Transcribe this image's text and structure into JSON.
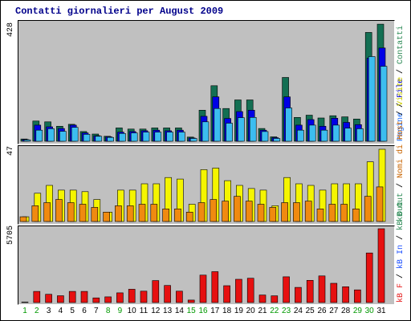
{
  "title": "Contatti giornalieri per August 2009",
  "colors": {
    "pages": "#3cbdf0",
    "files": "#0000e6",
    "visits": "#136f53",
    "hosts": "#f5f500",
    "kb_in": "#f08a10",
    "kb": "#e61010",
    "weekend": "#009900",
    "panel_bg": "#c0c0c0"
  },
  "legend_top": [
    {
      "label": "Pagine",
      "color": "#1e6fff"
    },
    {
      "label": "File",
      "color": "#0000cc"
    },
    {
      "label": "Contatti",
      "color": "#2e8b57"
    }
  ],
  "legend_mid": [
    {
      "label": "kB Out",
      "color": "#2e8b57"
    },
    {
      "label": "Nomi di Host",
      "color": "#c86400"
    },
    {
      "label": "Visite",
      "color": "#cccc00"
    }
  ],
  "legend_bot": [
    {
      "label": "kB F",
      "color": "#e62020"
    },
    {
      "label": "kB In",
      "color": "#1e50ff"
    },
    {
      "label": "kB Out",
      "color": "#2e8b57"
    }
  ],
  "chart_data": [
    {
      "type": "bar",
      "panel": "top",
      "ymax_label": "428",
      "ylim": [
        0,
        428
      ],
      "categories": [
        "1",
        "2",
        "3",
        "4",
        "5",
        "6",
        "7",
        "8",
        "9",
        "10",
        "11",
        "12",
        "13",
        "14",
        "15",
        "16",
        "17",
        "18",
        "19",
        "20",
        "21",
        "22",
        "23",
        "24",
        "25",
        "26",
        "27",
        "28",
        "29",
        "30",
        "31"
      ],
      "weekend_days": [
        "1",
        "2",
        "8",
        "9",
        "15",
        "16",
        "22",
        "23",
        "29",
        "30"
      ],
      "series": [
        {
          "name": "Contatti",
          "values": [
            8,
            73,
            70,
            54,
            61,
            35,
            26,
            18,
            48,
            44,
            44,
            48,
            48,
            48,
            15,
            112,
            200,
            118,
            149,
            149,
            46,
            16,
            230,
            86,
            94,
            84,
            92,
            88,
            80,
            392,
            422
          ]
        },
        {
          "name": "File",
          "values": [
            6,
            58,
            52,
            46,
            58,
            30,
            20,
            16,
            33,
            35,
            38,
            40,
            38,
            40,
            12,
            90,
            160,
            82,
            107,
            112,
            40,
            13,
            160,
            58,
            78,
            54,
            83,
            68,
            60,
            300,
            336
          ]
        },
        {
          "name": "Pagine",
          "values": [
            5,
            40,
            45,
            36,
            50,
            25,
            18,
            14,
            28,
            30,
            33,
            33,
            33,
            33,
            10,
            70,
            118,
            65,
            85,
            86,
            35,
            10,
            120,
            40,
            58,
            40,
            58,
            47,
            45,
            305,
            270
          ]
        }
      ]
    },
    {
      "type": "bar",
      "panel": "middle",
      "ymax_label": "47",
      "ylim": [
        0,
        47
      ],
      "categories": [
        "1",
        "2",
        "3",
        "4",
        "5",
        "6",
        "7",
        "8",
        "9",
        "10",
        "11",
        "12",
        "13",
        "14",
        "15",
        "16",
        "17",
        "18",
        "19",
        "20",
        "21",
        "22",
        "23",
        "24",
        "25",
        "26",
        "27",
        "28",
        "29",
        "30",
        "31"
      ],
      "series": [
        {
          "name": "Visite",
          "values": [
            3,
            18,
            23,
            20,
            20,
            19,
            14,
            6,
            20,
            20,
            24,
            24,
            28,
            27,
            11,
            33,
            34,
            26,
            23,
            21,
            20,
            10,
            28,
            24,
            23,
            20,
            24,
            24,
            24,
            38,
            46
          ]
        },
        {
          "name": "Nomi di Host",
          "values": [
            3,
            10,
            12,
            14,
            12,
            11,
            9,
            6,
            10,
            10,
            11,
            11,
            8,
            8,
            6,
            12,
            14,
            13,
            16,
            13,
            11,
            9,
            12,
            12,
            13,
            8,
            11,
            11,
            8,
            16,
            22
          ]
        }
      ]
    },
    {
      "type": "bar",
      "panel": "bottom",
      "ymax_label": "5705",
      "ylim": [
        0,
        5705
      ],
      "categories": [
        "1",
        "2",
        "3",
        "4",
        "5",
        "6",
        "7",
        "8",
        "9",
        "10",
        "11",
        "12",
        "13",
        "14",
        "15",
        "16",
        "17",
        "18",
        "19",
        "20",
        "21",
        "22",
        "23",
        "24",
        "25",
        "26",
        "27",
        "28",
        "29",
        "30",
        "31"
      ],
      "series": [
        {
          "name": "kB F",
          "values": [
            40,
            860,
            640,
            530,
            860,
            860,
            360,
            440,
            750,
            1030,
            880,
            1700,
            1320,
            880,
            190,
            2120,
            2390,
            1300,
            1800,
            1880,
            580,
            520,
            1990,
            1170,
            1720,
            2060,
            1490,
            1220,
            980,
            3830,
            5705
          ]
        }
      ]
    }
  ],
  "x_labels": [
    "1",
    "2",
    "3",
    "4",
    "5",
    "6",
    "7",
    "8",
    "9",
    "10",
    "11",
    "12",
    "13",
    "14",
    "15",
    "16",
    "17",
    "18",
    "19",
    "20",
    "21",
    "22",
    "23",
    "24",
    "25",
    "26",
    "27",
    "28",
    "29",
    "30",
    "31"
  ]
}
